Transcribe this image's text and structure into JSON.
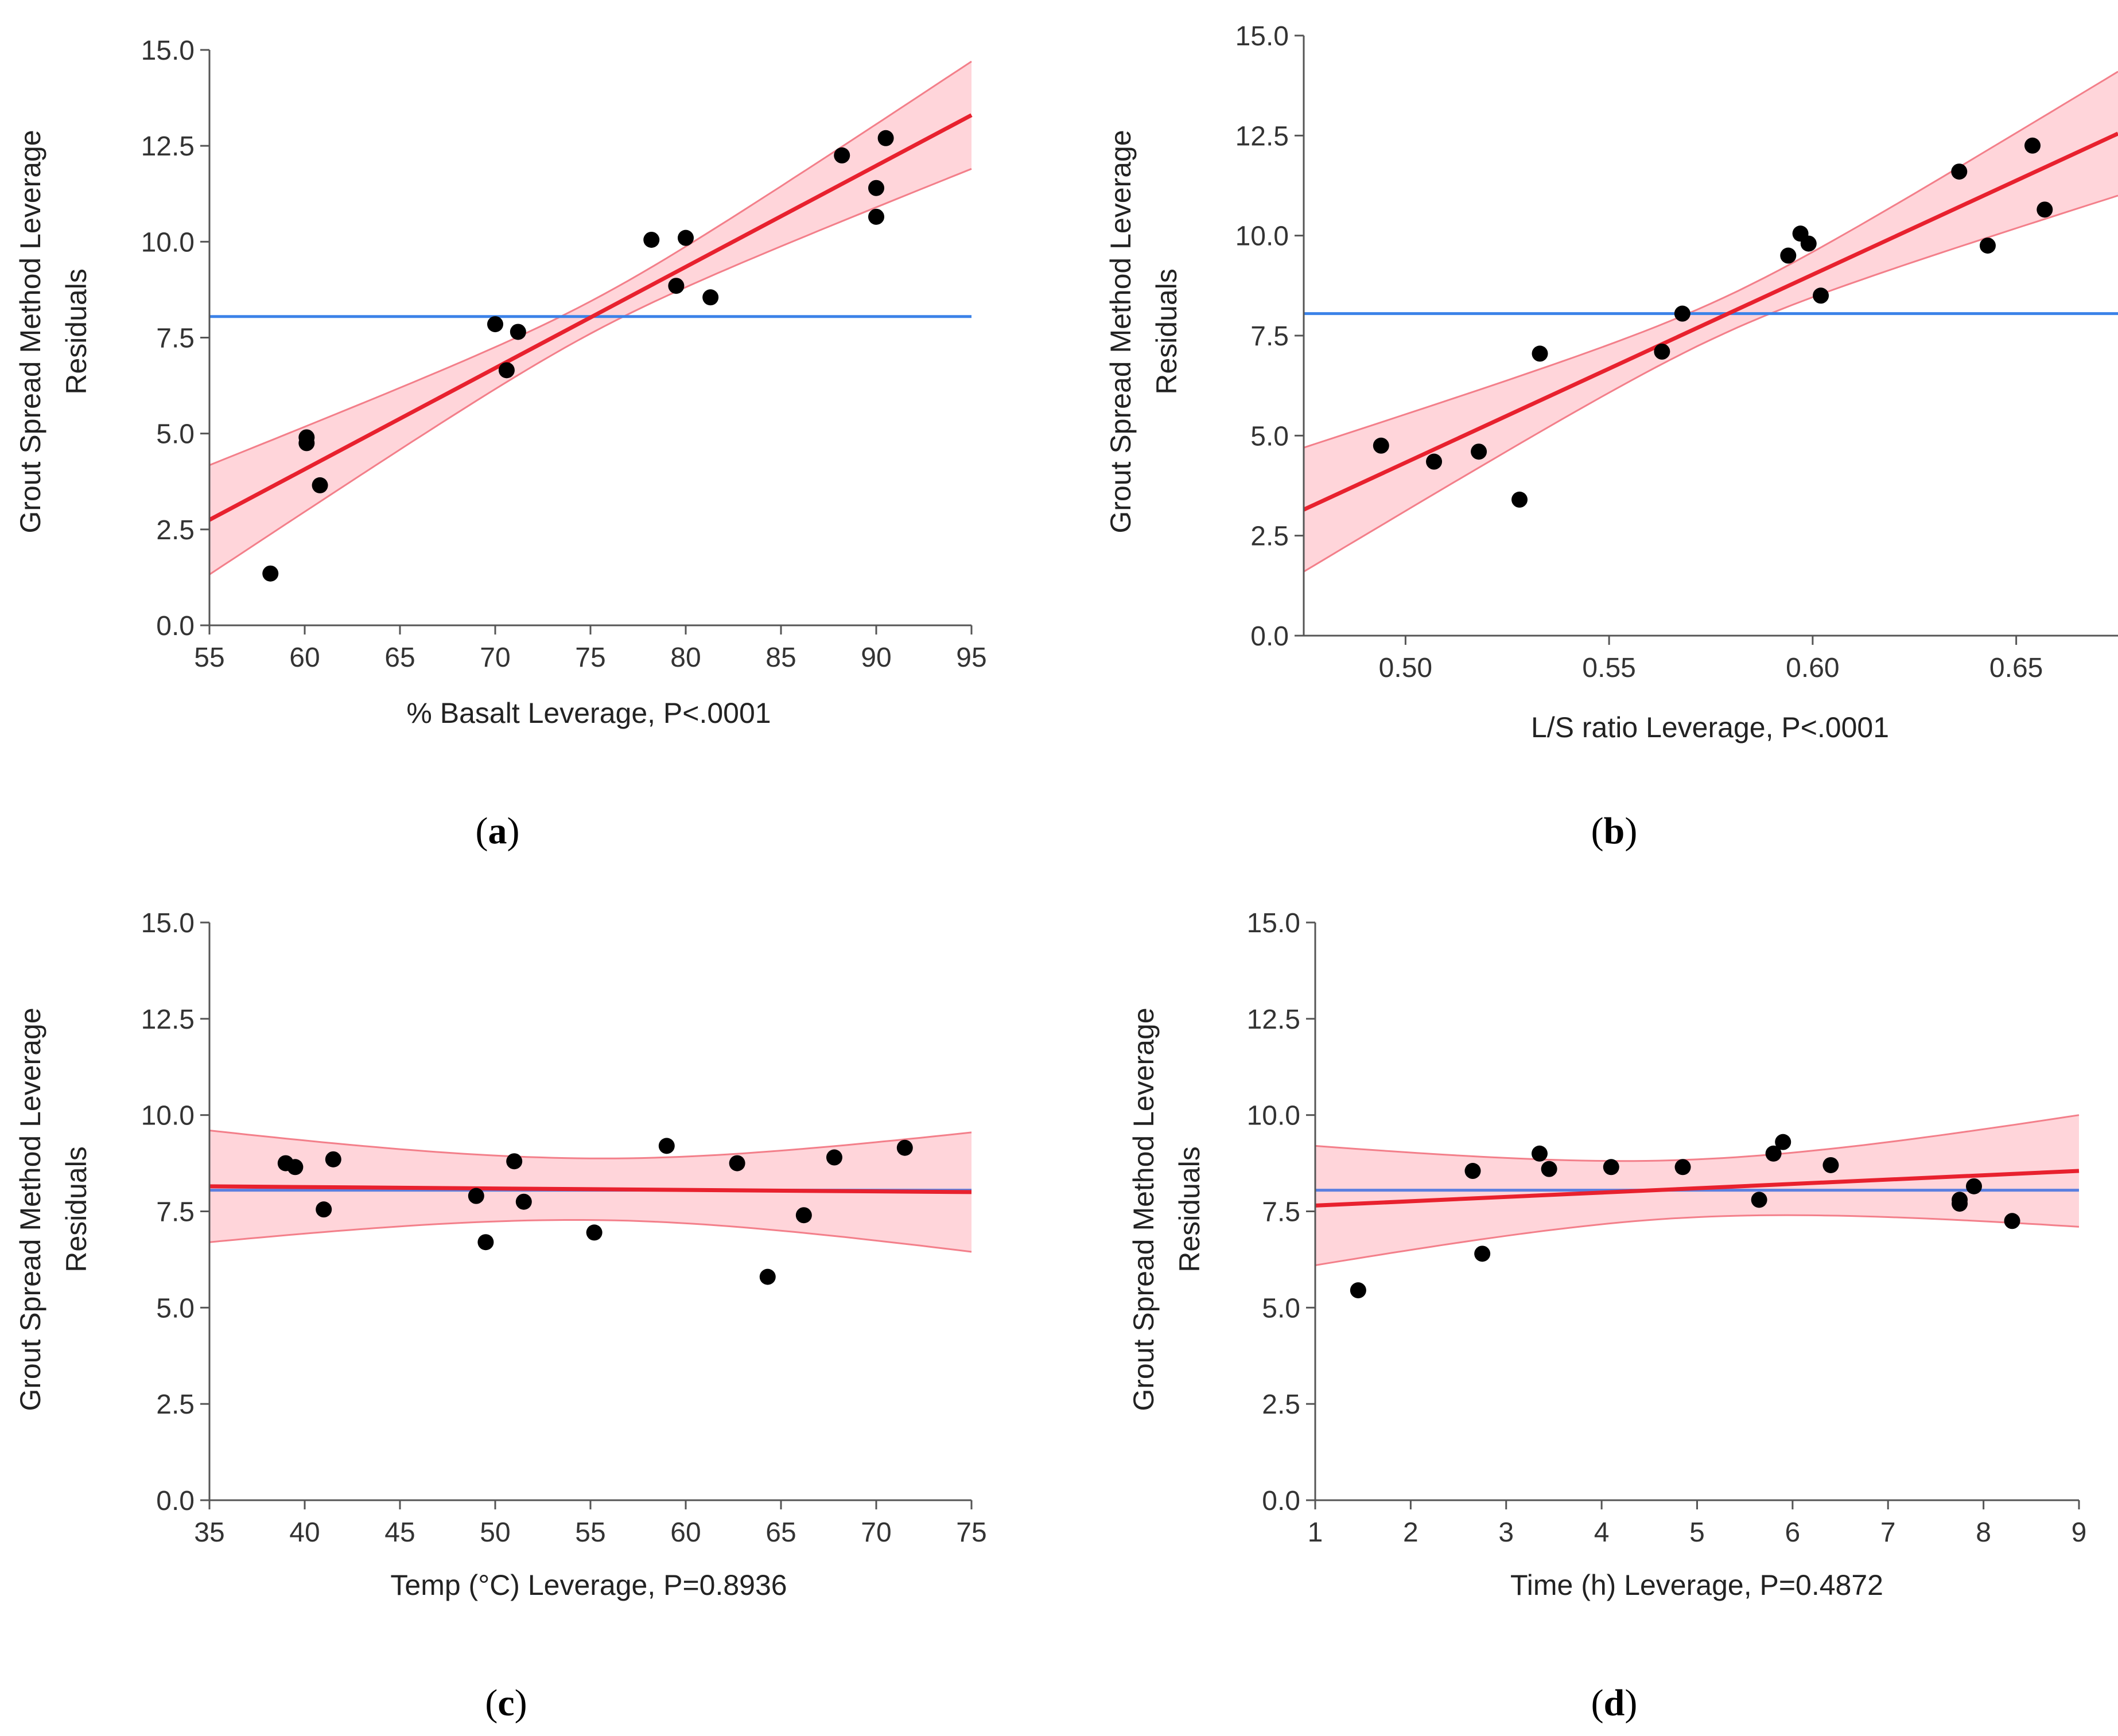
{
  "chart_data": [
    {
      "id": "a",
      "type": "scatter",
      "panel_label": "a",
      "xlabel": "% Basalt Leverage, P<.0001",
      "ylabel_line1": "Grout Spread Method Leverage",
      "ylabel_line2": "Residuals",
      "xlim": [
        55,
        95
      ],
      "ylim": [
        0,
        15
      ],
      "xticks": [
        "55",
        "60",
        "65",
        "70",
        "75",
        "80",
        "85",
        "90",
        "95"
      ],
      "yticks": [
        "0.0",
        "2.5",
        "5.0",
        "7.5",
        "10.0",
        "12.5",
        "15.0"
      ],
      "mean_line": 8.05,
      "fit": {
        "x0": 55,
        "y0": 2.75,
        "x1": 95,
        "y1": 13.3,
        "lo0": 1.3,
        "hi0": 4.15,
        "lo1": 11.95,
        "hi1": 14.75,
        "xm": 75.2,
        "wm": 0.42
      },
      "points": [
        [
          58.2,
          1.35
        ],
        [
          60.1,
          4.9
        ],
        [
          60.1,
          4.75
        ],
        [
          60.8,
          3.65
        ],
        [
          70.0,
          7.85
        ],
        [
          70.6,
          6.65
        ],
        [
          71.2,
          7.65
        ],
        [
          78.2,
          10.05
        ],
        [
          79.5,
          8.85
        ],
        [
          80.0,
          10.1
        ],
        [
          81.3,
          8.55
        ],
        [
          88.2,
          12.25
        ],
        [
          90.0,
          11.4
        ],
        [
          90.0,
          10.65
        ],
        [
          90.5,
          12.7
        ]
      ],
      "colors": {
        "fit": "#e8212e",
        "band": "#ffb3bb",
        "mean": "#3b82e8"
      }
    },
    {
      "id": "b",
      "type": "scatter",
      "panel_label": "b",
      "xlabel": "L/S ratio Leverage, P<.0001",
      "ylabel_line1": "Grout Spread Method Leverage",
      "ylabel_line2": "Residuals",
      "xlim": [
        0.475,
        0.675
      ],
      "ylim": [
        0,
        15
      ],
      "xticks": [
        "0.50",
        "0.55",
        "0.60",
        "0.65"
      ],
      "xtick_values": [
        0.5,
        0.55,
        0.6,
        0.65
      ],
      "yticks": [
        "0.0",
        "2.5",
        "5.0",
        "7.5",
        "10.0",
        "12.5",
        "15.0"
      ],
      "mean_line": 8.05,
      "fit": {
        "x0": 0.475,
        "y0": 3.15,
        "x1": 0.675,
        "y1": 12.55,
        "lo0": 1.6,
        "hi0": 4.7,
        "lo1": 11.0,
        "hi1": 14.1,
        "xm": 0.5775,
        "wm": 0.45
      },
      "points": [
        [
          0.494,
          4.75
        ],
        [
          0.507,
          4.35
        ],
        [
          0.518,
          4.6
        ],
        [
          0.528,
          3.4
        ],
        [
          0.533,
          7.05
        ],
        [
          0.563,
          7.1
        ],
        [
          0.568,
          8.05
        ],
        [
          0.594,
          9.5
        ],
        [
          0.597,
          10.05
        ],
        [
          0.599,
          9.8
        ],
        [
          0.602,
          8.5
        ],
        [
          0.636,
          11.6
        ],
        [
          0.643,
          9.75
        ],
        [
          0.654,
          12.25
        ],
        [
          0.657,
          10.65
        ]
      ],
      "colors": {
        "fit": "#e8212e",
        "band": "#ffb3bb",
        "mean": "#3b82e8"
      }
    },
    {
      "id": "c",
      "type": "scatter",
      "panel_label": "c",
      "xlabel": "Temp (°C) Leverage, P=0.8936",
      "ylabel_line1": "Grout Spread Method Leverage",
      "ylabel_line2": "Residuals",
      "xlim": [
        35,
        75
      ],
      "ylim": [
        0,
        15
      ],
      "xticks": [
        "35",
        "40",
        "45",
        "50",
        "55",
        "60",
        "65",
        "70",
        "75"
      ],
      "yticks": [
        "0.0",
        "2.5",
        "5.0",
        "7.5",
        "10.0",
        "12.5",
        "15.0"
      ],
      "mean_line": 8.05,
      "fit": {
        "x0": 35,
        "y0": 8.15,
        "x1": 75,
        "y1": 8.0,
        "lo0": 6.7,
        "hi0": 9.6,
        "lo1": 6.45,
        "hi1": 9.55,
        "xm": 55.0,
        "wm": 0.8
      },
      "points": [
        [
          39.0,
          8.75
        ],
        [
          39.5,
          8.65
        ],
        [
          41.0,
          7.55
        ],
        [
          41.5,
          8.85
        ],
        [
          49.0,
          7.9
        ],
        [
          49.5,
          6.7
        ],
        [
          51.0,
          8.8
        ],
        [
          51.5,
          7.75
        ],
        [
          55.2,
          6.95
        ],
        [
          59.0,
          9.2
        ],
        [
          62.7,
          8.75
        ],
        [
          64.3,
          5.8
        ],
        [
          66.2,
          7.4
        ],
        [
          67.8,
          8.9
        ],
        [
          71.5,
          9.15
        ]
      ],
      "colors": {
        "fit": "#e8212e",
        "band": "#ffb3bb",
        "mean": "#5b7fe0"
      }
    },
    {
      "id": "d",
      "type": "scatter",
      "panel_label": "d",
      "xlabel": "Time (h) Leverage, P=0.4872",
      "ylabel_line1": "Grout Spread Method Leverage",
      "ylabel_line2": "Residuals",
      "xlim": [
        1,
        9
      ],
      "ylim": [
        0,
        15
      ],
      "xticks": [
        "1",
        "2",
        "3",
        "4",
        "5",
        "6",
        "7",
        "8",
        "9"
      ],
      "yticks": [
        "0.0",
        "2.5",
        "5.0",
        "7.5",
        "10.0",
        "12.5",
        "15.0"
      ],
      "mean_line": 8.05,
      "fit": {
        "x0": 1,
        "y0": 7.65,
        "x1": 9,
        "y1": 8.55,
        "lo0": 6.1,
        "hi0": 9.2,
        "lo1": 7.05,
        "hi1": 9.95,
        "xm": 5.0,
        "wm": 0.75
      },
      "points": [
        [
          1.45,
          5.45
        ],
        [
          2.65,
          8.55
        ],
        [
          2.75,
          6.4
        ],
        [
          3.35,
          9.0
        ],
        [
          3.45,
          8.6
        ],
        [
          4.1,
          8.65
        ],
        [
          4.85,
          8.65
        ],
        [
          5.65,
          7.8
        ],
        [
          5.8,
          9.0
        ],
        [
          5.9,
          9.3
        ],
        [
          6.4,
          8.7
        ],
        [
          7.75,
          7.7
        ],
        [
          7.75,
          7.8
        ],
        [
          7.9,
          8.15
        ],
        [
          8.3,
          7.25
        ]
      ],
      "colors": {
        "fit": "#e8212e",
        "band": "#ffb3bb",
        "mean": "#5b7fe0"
      }
    }
  ]
}
